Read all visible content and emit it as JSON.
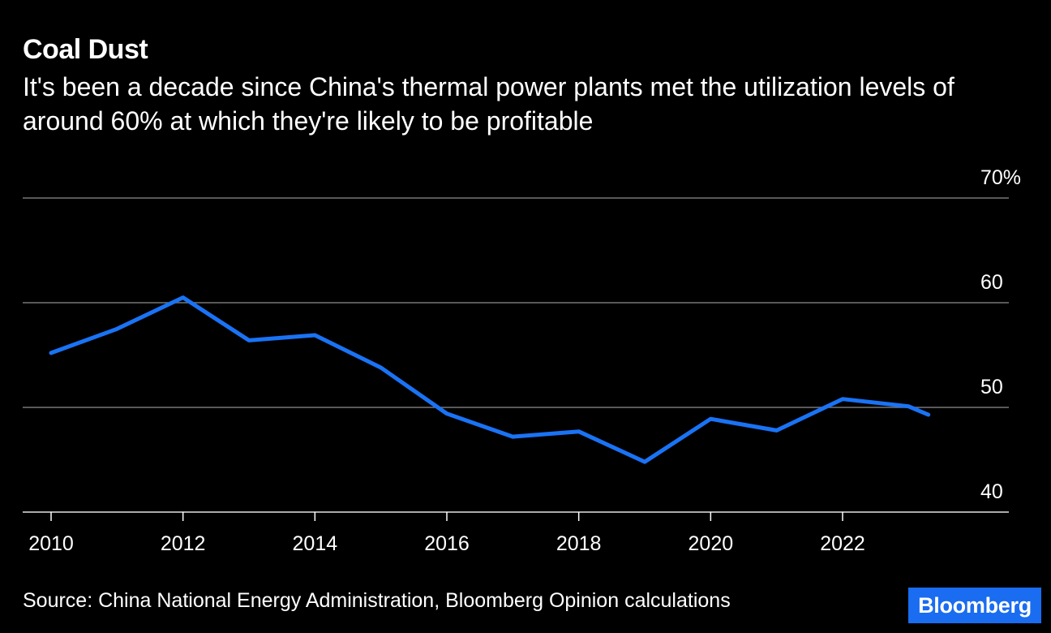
{
  "title": "Coal Dust",
  "subtitle": "It's been a decade since China's thermal power plants met the utilization levels of around 60% at which they're likely to be profitable",
  "source": "Source: China National Energy Administration, Bloomberg Opinion calculations",
  "brand": "Bloomberg",
  "colors": {
    "background": "#000000",
    "line": "#1a73f5",
    "grid": "#777777",
    "brand": "#1a6cf0"
  },
  "chart_data": {
    "type": "line",
    "title": "Coal Dust",
    "xlabel": "",
    "ylabel": "",
    "ylim": [
      40,
      70
    ],
    "xlim": [
      2009.8,
      2024.2
    ],
    "y_ticks": [
      {
        "value": 70,
        "label": "70%"
      },
      {
        "value": 60,
        "label": "60"
      },
      {
        "value": 50,
        "label": "50"
      },
      {
        "value": 40,
        "label": "40"
      }
    ],
    "x_ticks": [
      {
        "value": 2010,
        "label": "2010"
      },
      {
        "value": 2012,
        "label": "2012"
      },
      {
        "value": 2014,
        "label": "2014"
      },
      {
        "value": 2016,
        "label": "2016"
      },
      {
        "value": 2018,
        "label": "2018"
      },
      {
        "value": 2020,
        "label": "2020"
      },
      {
        "value": 2022,
        "label": "2022"
      }
    ],
    "grid": true,
    "series": [
      {
        "x": [
          2010,
          2011,
          2012,
          2013,
          2014,
          2015,
          2016,
          2017,
          2018,
          2019,
          2020,
          2021,
          2022,
          2023,
          2023.3
        ],
        "values": [
          55.2,
          57.5,
          60.5,
          56.4,
          56.9,
          53.8,
          49.4,
          47.2,
          47.7,
          44.8,
          48.9,
          47.8,
          50.8,
          50.1,
          49.3
        ]
      }
    ]
  }
}
